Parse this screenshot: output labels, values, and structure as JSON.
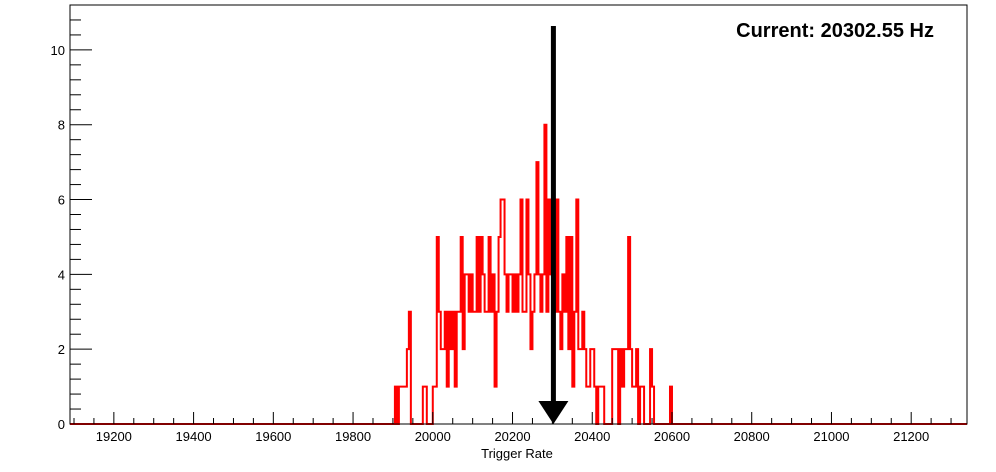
{
  "chart_data": {
    "type": "histogram",
    "title": "",
    "xlabel": "Trigger Rate",
    "ylabel": "",
    "xlim": [
      19090,
      21340
    ],
    "ylim": [
      0,
      11.2
    ],
    "x_ticks": [
      19200,
      19400,
      19600,
      19800,
      20000,
      20200,
      20400,
      20600,
      20800,
      21000,
      21200
    ],
    "y_ticks": [
      0,
      2,
      4,
      6,
      8,
      10
    ],
    "grid": false,
    "legend": "none",
    "line_color": "#ff0000",
    "marker_color": "#000000",
    "annotation": "Current: 20302.55 Hz",
    "current_value": 20302.55,
    "bin_width": 5,
    "series": [
      {
        "bins": [
          [
            19905,
            1
          ],
          [
            19910,
            0
          ],
          [
            19915,
            1
          ],
          [
            19920,
            1
          ],
          [
            19925,
            1
          ],
          [
            19930,
            1
          ],
          [
            19935,
            2
          ],
          [
            19940,
            3
          ],
          [
            19945,
            0
          ],
          [
            19950,
            0
          ],
          [
            19955,
            0
          ],
          [
            19960,
            0
          ],
          [
            19965,
            0
          ],
          [
            19970,
            0
          ],
          [
            19975,
            1
          ],
          [
            19980,
            1
          ],
          [
            19985,
            0
          ],
          [
            19990,
            0
          ],
          [
            19995,
            0
          ],
          [
            20000,
            1
          ],
          [
            20005,
            1
          ],
          [
            20010,
            5
          ],
          [
            20015,
            3
          ],
          [
            20020,
            2
          ],
          [
            20025,
            2
          ],
          [
            20030,
            3
          ],
          [
            20035,
            1
          ],
          [
            20040,
            3
          ],
          [
            20045,
            2
          ],
          [
            20050,
            3
          ],
          [
            20055,
            1
          ],
          [
            20060,
            3
          ],
          [
            20065,
            3
          ],
          [
            20070,
            5
          ],
          [
            20075,
            2
          ],
          [
            20080,
            4
          ],
          [
            20085,
            4
          ],
          [
            20090,
            3
          ],
          [
            20095,
            4
          ],
          [
            20100,
            3
          ],
          [
            20105,
            3
          ],
          [
            20110,
            5
          ],
          [
            20115,
            3
          ],
          [
            20120,
            5
          ],
          [
            20125,
            4
          ],
          [
            20130,
            3
          ],
          [
            20135,
            3
          ],
          [
            20140,
            5
          ],
          [
            20145,
            3
          ],
          [
            20150,
            4
          ],
          [
            20155,
            1
          ],
          [
            20160,
            3
          ],
          [
            20165,
            5
          ],
          [
            20170,
            6
          ],
          [
            20175,
            6
          ],
          [
            20180,
            4
          ],
          [
            20185,
            3
          ],
          [
            20190,
            4
          ],
          [
            20195,
            4
          ],
          [
            20200,
            3
          ],
          [
            20205,
            4
          ],
          [
            20210,
            3
          ],
          [
            20215,
            4
          ],
          [
            20220,
            6
          ],
          [
            20225,
            3
          ],
          [
            20230,
            3
          ],
          [
            20235,
            6
          ],
          [
            20240,
            4
          ],
          [
            20245,
            2
          ],
          [
            20250,
            3
          ],
          [
            20255,
            4
          ],
          [
            20260,
            7
          ],
          [
            20265,
            4
          ],
          [
            20270,
            3
          ],
          [
            20275,
            4
          ],
          [
            20280,
            8
          ],
          [
            20285,
            3
          ],
          [
            20290,
            6
          ],
          [
            20295,
            4
          ],
          [
            20300,
            4
          ],
          [
            20305,
            3
          ],
          [
            20310,
            6
          ],
          [
            20315,
            3
          ],
          [
            20320,
            2
          ],
          [
            20325,
            4
          ],
          [
            20330,
            3
          ],
          [
            20335,
            5
          ],
          [
            20340,
            2
          ],
          [
            20345,
            5
          ],
          [
            20350,
            1
          ],
          [
            20355,
            3
          ],
          [
            20360,
            6
          ],
          [
            20365,
            2
          ],
          [
            20370,
            2
          ],
          [
            20375,
            3
          ],
          [
            20380,
            2
          ],
          [
            20385,
            1
          ],
          [
            20390,
            1
          ],
          [
            20395,
            2
          ],
          [
            20400,
            2
          ],
          [
            20405,
            1
          ],
          [
            20410,
            0
          ],
          [
            20415,
            1
          ],
          [
            20420,
            1
          ],
          [
            20425,
            1
          ],
          [
            20430,
            0
          ],
          [
            20435,
            0
          ],
          [
            20440,
            0
          ],
          [
            20445,
            0
          ],
          [
            20450,
            2
          ],
          [
            20455,
            2
          ],
          [
            20460,
            2
          ],
          [
            20465,
            0
          ],
          [
            20470,
            2
          ],
          [
            20475,
            1
          ],
          [
            20480,
            2
          ],
          [
            20485,
            2
          ],
          [
            20490,
            5
          ],
          [
            20495,
            2
          ],
          [
            20500,
            1
          ],
          [
            20505,
            1
          ],
          [
            20510,
            2
          ],
          [
            20515,
            0
          ],
          [
            20520,
            1
          ],
          [
            20525,
            1
          ],
          [
            20530,
            0
          ],
          [
            20535,
            0
          ],
          [
            20540,
            0
          ],
          [
            20545,
            2
          ],
          [
            20550,
            1
          ],
          [
            20555,
            0
          ],
          [
            20560,
            0
          ],
          [
            20565,
            0
          ],
          [
            20570,
            0
          ],
          [
            20575,
            0
          ],
          [
            20580,
            0
          ],
          [
            20585,
            0
          ],
          [
            20590,
            0
          ],
          [
            20595,
            1
          ],
          [
            20600,
            0
          ]
        ]
      }
    ]
  }
}
